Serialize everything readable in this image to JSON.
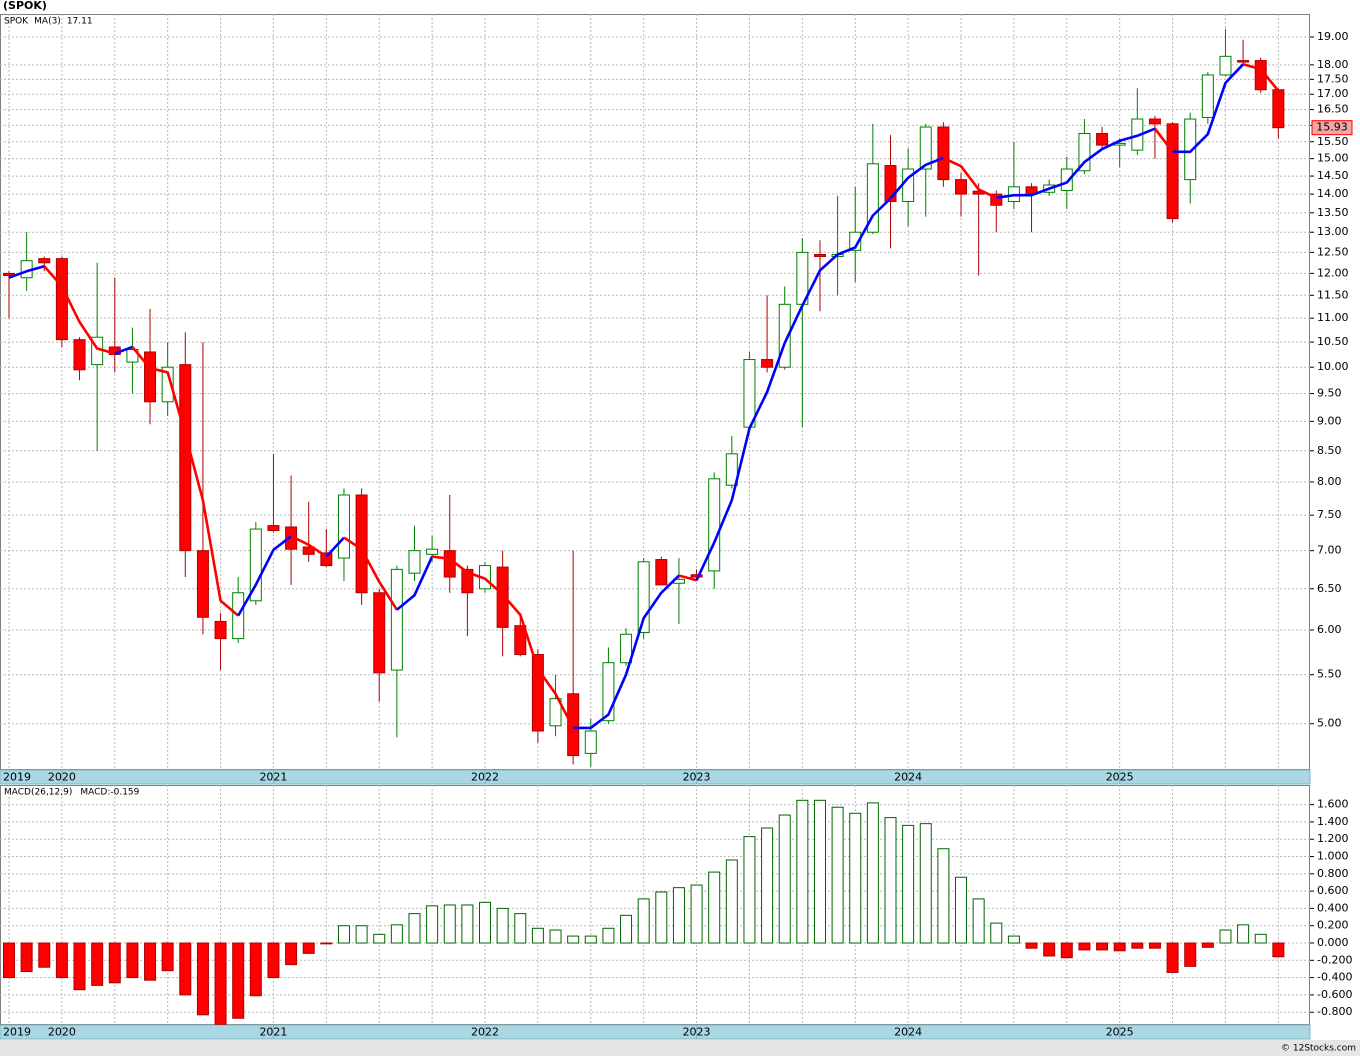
{
  "title": "(SPOK)",
  "watermark": "© 12Stocks.com",
  "chart_data": [
    {
      "type": "candlestick",
      "symbol": "SPOK",
      "categories": [
        "2019",
        null,
        null,
        "2020",
        null,
        null,
        null,
        null,
        null,
        null,
        null,
        null,
        null,
        null,
        null,
        "2021",
        null,
        null,
        null,
        null,
        null,
        null,
        null,
        null,
        null,
        null,
        null,
        "2022",
        null,
        null,
        null,
        null,
        null,
        null,
        null,
        null,
        null,
        null,
        null,
        "2023",
        null,
        null,
        null,
        null,
        null,
        null,
        null,
        null,
        null,
        null,
        null,
        "2024",
        null,
        null,
        null,
        null,
        null,
        null,
        null,
        null,
        null,
        null,
        null,
        "2025",
        null,
        null,
        null,
        null,
        null,
        null,
        null,
        null,
        null
      ],
      "open": [
        12.0,
        11.9,
        12.35,
        12.35,
        10.55,
        10.05,
        10.4,
        10.1,
        10.3,
        9.35,
        10.05,
        7.0,
        6.1,
        5.9,
        6.35,
        7.35,
        7.33,
        7.05,
        6.97,
        6.9,
        7.8,
        6.45,
        5.55,
        6.7,
        6.95,
        7.0,
        6.75,
        6.5,
        6.78,
        6.05,
        5.72,
        4.98,
        5.3,
        4.72,
        5.03,
        5.63,
        5.97,
        6.88,
        6.57,
        6.68,
        6.73,
        7.95,
        8.9,
        10.15,
        10.0,
        11.3,
        12.45,
        12.4,
        12.55,
        13.0,
        14.8,
        13.8,
        14.7,
        15.95,
        14.4,
        14.08,
        14.0,
        13.8,
        14.2,
        14.05,
        14.1,
        14.65,
        15.75,
        15.4,
        15.25,
        16.2,
        16.05,
        14.4,
        16.25,
        17.65,
        18.15,
        18.15,
        17.15
      ],
      "high": [
        12.05,
        13.0,
        12.4,
        12.4,
        10.6,
        12.25,
        11.9,
        10.8,
        11.2,
        10.5,
        10.7,
        10.5,
        6.2,
        6.65,
        7.4,
        8.45,
        8.1,
        7.7,
        7.3,
        7.9,
        7.9,
        6.5,
        6.8,
        7.35,
        7.2,
        7.8,
        6.8,
        6.85,
        7.0,
        6.2,
        5.78,
        5.5,
        7.0,
        5.05,
        5.8,
        6.02,
        6.9,
        6.92,
        6.9,
        6.75,
        8.15,
        8.75,
        10.3,
        11.5,
        11.7,
        12.85,
        12.8,
        13.95,
        14.2,
        16.05,
        15.7,
        15.3,
        16.05,
        16.1,
        14.6,
        14.3,
        14.1,
        15.5,
        14.3,
        14.4,
        15.05,
        16.2,
        15.95,
        15.6,
        17.2,
        16.3,
        16.1,
        16.4,
        17.75,
        19.3,
        18.9,
        18.25,
        17.2
      ],
      "low": [
        11.0,
        11.6,
        12.05,
        10.4,
        9.75,
        8.5,
        9.9,
        9.5,
        8.95,
        9.1,
        6.65,
        5.95,
        5.55,
        5.85,
        6.3,
        7.25,
        6.55,
        6.85,
        6.78,
        6.6,
        6.3,
        5.22,
        4.87,
        6.6,
        6.85,
        6.45,
        5.93,
        6.45,
        5.7,
        5.7,
        4.82,
        4.88,
        4.62,
        4.6,
        5.0,
        5.6,
        5.9,
        6.55,
        6.07,
        6.6,
        6.5,
        7.9,
        8.85,
        9.9,
        9.95,
        8.9,
        11.15,
        11.5,
        11.8,
        12.95,
        12.6,
        13.15,
        13.4,
        14.2,
        13.4,
        11.95,
        13.0,
        13.6,
        13.0,
        13.95,
        13.6,
        14.55,
        15.3,
        14.75,
        15.1,
        15.0,
        13.25,
        13.75,
        16.05,
        17.6,
        18.0,
        17.05,
        15.6
      ],
      "close": [
        11.95,
        12.3,
        12.25,
        10.55,
        9.95,
        10.6,
        10.25,
        10.35,
        9.35,
        10.0,
        7.0,
        6.15,
        5.9,
        6.45,
        7.3,
        7.28,
        7.02,
        6.95,
        6.8,
        7.8,
        6.45,
        5.52,
        6.75,
        7.0,
        7.02,
        6.65,
        6.45,
        6.8,
        6.03,
        5.72,
        4.93,
        5.25,
        4.7,
        4.93,
        5.63,
        5.95,
        6.85,
        6.55,
        6.62,
        6.65,
        8.05,
        8.45,
        10.15,
        10.0,
        11.3,
        12.5,
        12.4,
        12.45,
        13.0,
        14.85,
        13.8,
        14.7,
        15.95,
        14.4,
        14.0,
        14.0,
        13.7,
        14.2,
        14.0,
        14.25,
        14.7,
        15.75,
        15.4,
        15.45,
        16.2,
        16.05,
        13.35,
        16.2,
        17.65,
        18.3,
        18.1,
        17.15,
        15.93
      ],
      "up_color": "#ffffff",
      "up_border": "#008000",
      "down_color": "#ff0000",
      "down_border": "#b00000",
      "ma": {
        "name": "MA(3)",
        "values": [
          11.9,
          12.05,
          12.17,
          11.7,
          10.92,
          10.37,
          10.27,
          10.4,
          9.98,
          9.9,
          8.78,
          7.72,
          6.35,
          6.17,
          6.55,
          7.01,
          7.2,
          7.08,
          6.92,
          7.18,
          7.02,
          6.59,
          6.24,
          6.42,
          6.92,
          6.89,
          6.71,
          6.63,
          6.43,
          6.18,
          5.56,
          5.3,
          4.96,
          4.96,
          5.09,
          5.5,
          6.14,
          6.45,
          6.67,
          6.61,
          7.11,
          7.72,
          8.88,
          9.53,
          10.48,
          11.27,
          12.07,
          12.45,
          12.62,
          13.43,
          13.88,
          14.45,
          14.82,
          15.02,
          14.78,
          14.13,
          13.9,
          13.97,
          13.97,
          14.15,
          14.32,
          14.9,
          15.28,
          15.53,
          15.68,
          15.9,
          15.2,
          15.2,
          15.73,
          17.38,
          18.02,
          17.85,
          17.11
        ],
        "rising_color": "#0000ff",
        "falling_color": "#ff0000"
      },
      "log_scale": true,
      "ylim": [
        4.57,
        19.87
      ],
      "yticks": [
        {
          "value": 5,
          "label": "5.00"
        },
        {
          "value": 5.5,
          "label": "5.50"
        },
        {
          "value": 6,
          "label": "6.00"
        },
        {
          "value": 6.5,
          "label": "6.50"
        },
        {
          "value": 7,
          "label": "7.00"
        },
        {
          "value": 7.5,
          "label": "7.50"
        },
        {
          "value": 8,
          "label": "8.00"
        },
        {
          "value": 8.5,
          "label": "8.50"
        },
        {
          "value": 9,
          "label": "9.00"
        },
        {
          "value": 9.5,
          "label": "9.50"
        },
        {
          "value": 10,
          "label": "10.00"
        },
        {
          "value": 10.5,
          "label": "10.50"
        },
        {
          "value": 11,
          "label": "11.00"
        },
        {
          "value": 11.5,
          "label": "11.50"
        },
        {
          "value": 12,
          "label": "12.00"
        },
        {
          "value": 12.5,
          "label": "12.50"
        },
        {
          "value": 13,
          "label": "13.00"
        },
        {
          "value": 13.5,
          "label": "13.50"
        },
        {
          "value": 14,
          "label": "14.00"
        },
        {
          "value": 14.5,
          "label": "14.50"
        },
        {
          "value": 15,
          "label": "15.00"
        },
        {
          "value": 15.5,
          "label": "15.50"
        },
        {
          "value": 16,
          "label": "16.00"
        },
        {
          "value": 16.5,
          "label": "16.50"
        },
        {
          "value": 17,
          "label": "17.00"
        },
        {
          "value": 17.5,
          "label": "17.50"
        },
        {
          "value": 18,
          "label": "18.00"
        },
        {
          "value": 19,
          "label": "19.00"
        }
      ],
      "grid": true
    },
    {
      "type": "macd_histogram",
      "name": "MACD(26,12,9)",
      "current_label": "MACD:",
      "categories": [
        "2019",
        null,
        null,
        "2020",
        null,
        null,
        null,
        null,
        null,
        null,
        null,
        null,
        null,
        null,
        null,
        "2021",
        null,
        null,
        null,
        null,
        null,
        null,
        null,
        null,
        null,
        null,
        null,
        "2022",
        null,
        null,
        null,
        null,
        null,
        null,
        null,
        null,
        null,
        null,
        null,
        "2023",
        null,
        null,
        null,
        null,
        null,
        null,
        null,
        null,
        null,
        null,
        null,
        "2024",
        null,
        null,
        null,
        null,
        null,
        null,
        null,
        null,
        null,
        null,
        null,
        "2025",
        null,
        null,
        null,
        null,
        null,
        null,
        null,
        null,
        null
      ],
      "values": [
        -0.4,
        -0.33,
        -0.28,
        -0.4,
        -0.54,
        -0.49,
        -0.46,
        -0.4,
        -0.43,
        -0.32,
        -0.6,
        -0.83,
        -0.94,
        -0.87,
        -0.61,
        -0.4,
        -0.25,
        -0.12,
        -0.01,
        0.2,
        0.2,
        0.1,
        0.21,
        0.34,
        0.43,
        0.44,
        0.44,
        0.47,
        0.4,
        0.34,
        0.17,
        0.15,
        0.08,
        0.08,
        0.17,
        0.32,
        0.51,
        0.59,
        0.64,
        0.67,
        0.82,
        0.96,
        1.23,
        1.33,
        1.48,
        1.65,
        1.65,
        1.57,
        1.5,
        1.62,
        1.45,
        1.36,
        1.38,
        1.09,
        0.76,
        0.51,
        0.23,
        0.08,
        -0.06,
        -0.15,
        -0.17,
        -0.08,
        -0.08,
        -0.09,
        -0.06,
        -0.06,
        -0.34,
        -0.27,
        -0.05,
        0.15,
        0.21,
        0.1,
        -0.159
      ],
      "positive_color": "#006400",
      "negative_color": "#ff0000",
      "ylim": [
        -0.948,
        1.827
      ],
      "yticks": [
        {
          "value": -0.8,
          "label": "-0.800"
        },
        {
          "value": -0.6,
          "label": "-0.600"
        },
        {
          "value": -0.4,
          "label": "-0.400"
        },
        {
          "value": -0.2,
          "label": "-0.200"
        },
        {
          "value": 0,
          "label": "0.000"
        },
        {
          "value": 0.2,
          "label": "0.200"
        },
        {
          "value": 0.4,
          "label": "0.400"
        },
        {
          "value": 0.6,
          "label": "0.600"
        },
        {
          "value": 0.8,
          "label": "0.800"
        },
        {
          "value": 1.0,
          "label": "1.000"
        },
        {
          "value": 1.2,
          "label": "1.200"
        },
        {
          "value": 1.4,
          "label": "1.400"
        },
        {
          "value": 1.6,
          "label": "1.600"
        }
      ],
      "grid": true
    }
  ]
}
